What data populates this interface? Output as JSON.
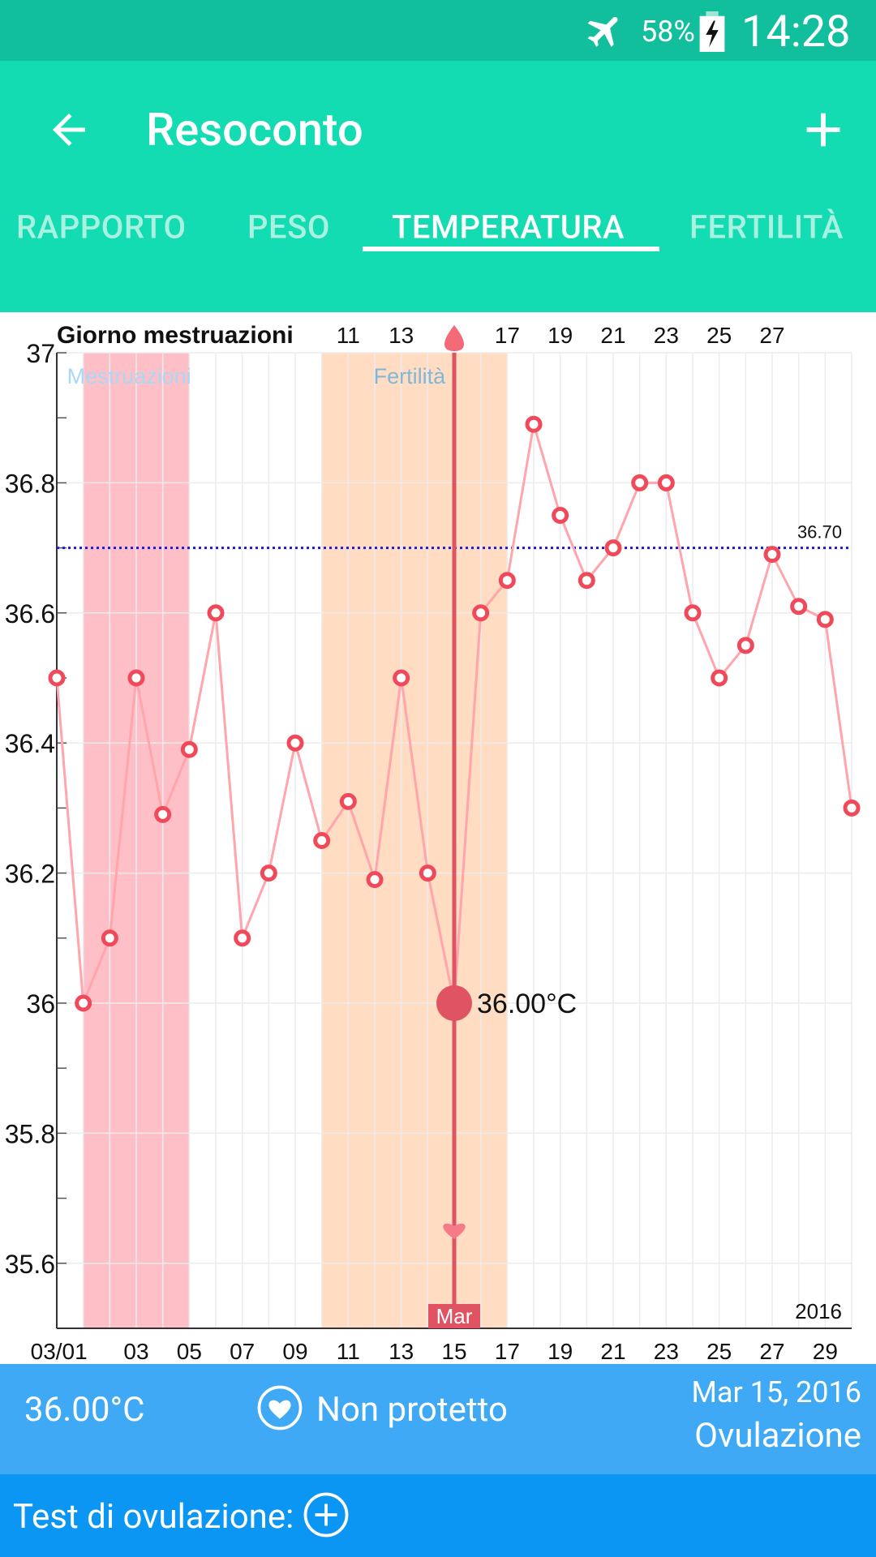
{
  "status_bar": {
    "battery_percent": "58%",
    "time": "14:28",
    "icons": [
      "airplane-mode-icon",
      "battery-charging-icon"
    ]
  },
  "app_bar": {
    "title": "Resoconto",
    "back_icon": "arrow-back-icon",
    "add_icon": "plus-icon"
  },
  "tabs": [
    {
      "label": "RAPPORTO",
      "active": false
    },
    {
      "label": "PESO",
      "active": false
    },
    {
      "label": "TEMPERATURA",
      "active": true
    },
    {
      "label": "FERTILITÀ",
      "active": false
    }
  ],
  "chart_data": {
    "type": "line",
    "header_label": "Giorno mestruazioni",
    "cycle_day_labels": [
      "11",
      "13",
      "17",
      "19",
      "21",
      "23",
      "25",
      "27"
    ],
    "x_date_labels": [
      "03/01",
      "03",
      "05",
      "07",
      "09",
      "11",
      "13",
      "15",
      "17",
      "19",
      "21",
      "23",
      "25",
      "27",
      "29"
    ],
    "year_label": "2016",
    "ylim": [
      35.5,
      37.0
    ],
    "y_tick_labels": [
      "37",
      "36.8",
      "36.6",
      "36.4",
      "36.2",
      "36",
      "35.8",
      "35.6"
    ],
    "x_range": [
      0,
      30
    ],
    "x": [
      0,
      1,
      2,
      3,
      4,
      5,
      6,
      7,
      8,
      9,
      10,
      11,
      12,
      13,
      14,
      15,
      16,
      17,
      18,
      19,
      20,
      21,
      22,
      23,
      24,
      25,
      26,
      27,
      28,
      29,
      30
    ],
    "values": [
      36.5,
      36.0,
      36.1,
      36.5,
      36.29,
      36.39,
      36.6,
      36.1,
      36.2,
      36.4,
      36.25,
      36.31,
      36.19,
      36.5,
      36.2,
      36.0,
      36.6,
      36.65,
      36.89,
      36.75,
      36.65,
      36.7,
      36.8,
      36.8,
      36.6,
      36.5,
      36.55,
      36.69,
      36.61,
      36.59,
      36.3
    ],
    "reference_line": {
      "value": 36.7,
      "label": "36.70",
      "color": "#1a1adb"
    },
    "bands": [
      {
        "label": "Mestruazioni",
        "x_start": 1,
        "x_end": 5,
        "color": "#ffbfc6",
        "label_color": "#a8d8f8"
      },
      {
        "label": "Fertilità",
        "x_start": 10,
        "x_end": 17,
        "color": "#ffdcc2",
        "label_color": "#7fb8d8"
      }
    ],
    "selected": {
      "x": 15,
      "value": 36.0,
      "label": "36.00°C",
      "day_label": "Mar"
    },
    "colors": {
      "line": "#ffa5ab",
      "marker": "#f04a5a",
      "selected": "#e05363",
      "grid": "#ececec"
    },
    "grid": true
  },
  "info_bar": {
    "temperature": "36.00°C",
    "protection": "Non protetto",
    "protection_icon": "heart-icon",
    "date": "Mar 15, 2016",
    "phase": "Ovulazione"
  },
  "ovulation_bar": {
    "label": "Test di ovulazione:",
    "add_icon": "plus-circle-icon"
  }
}
